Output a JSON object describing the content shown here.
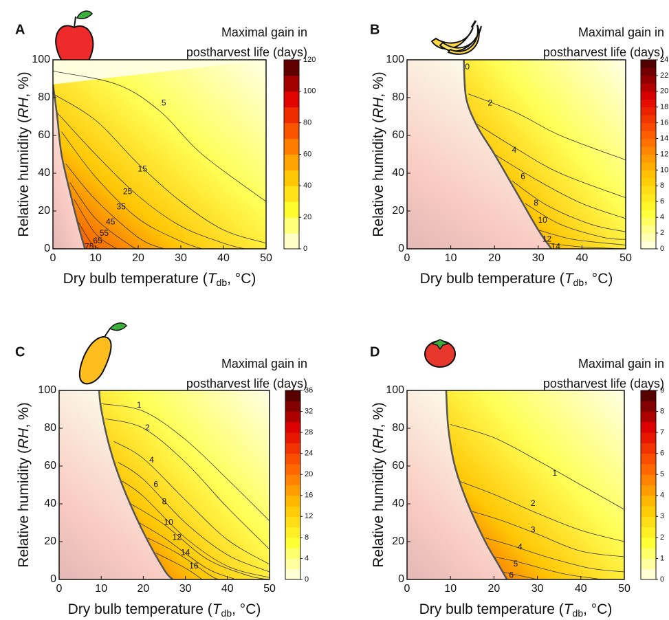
{
  "chart_data": [
    {
      "type": "contour",
      "panel": "A",
      "title_lines": [
        "Maximal gain in",
        "postharvest life (days)"
      ],
      "xlabel": [
        "Dry bulb temperature (",
        "T",
        "db",
        ", °C)"
      ],
      "ylabel": [
        "Relative humidity (",
        "RH",
        ", %)"
      ],
      "xlim": [
        0,
        50
      ],
      "ylim": [
        0,
        100
      ],
      "xticks": [
        0,
        10,
        20,
        30,
        40,
        50
      ],
      "yticks": [
        0,
        20,
        40,
        60,
        80,
        100
      ],
      "colormap": [
        "#fffff0",
        "#ffff30",
        "#ffc000",
        "#ff6000",
        "#e00000",
        "#400000"
      ],
      "colorbar": {
        "lim": [
          0,
          120
        ],
        "ticks": [
          0,
          20,
          40,
          60,
          80,
          100,
          120
        ]
      },
      "boundary": {
        "x": [
          0,
          1,
          2,
          4,
          6,
          7.5
        ],
        "y": [
          87,
          70,
          50,
          30,
          12,
          0
        ]
      },
      "contours": [
        {
          "level": 5,
          "label_at": [
            26,
            77
          ],
          "x": [
            0,
            15,
            25,
            35,
            50
          ],
          "y": [
            94,
            87,
            73,
            50,
            25
          ]
        },
        {
          "level": 15,
          "label_at": [
            21,
            42
          ],
          "x": [
            0,
            10,
            20,
            30,
            40,
            50
          ],
          "y": [
            82,
            68,
            45,
            25,
            10,
            3
          ]
        },
        {
          "level": 25,
          "label_at": [
            17.5,
            30
          ],
          "x": [
            1,
            10,
            20,
            30,
            40,
            45
          ],
          "y": [
            72,
            50,
            28,
            12,
            3,
            0
          ]
        },
        {
          "level": 35,
          "label_at": [
            16,
            22
          ],
          "x": [
            2,
            10,
            20,
            30,
            35
          ],
          "y": [
            62,
            38,
            16,
            4,
            0
          ]
        },
        {
          "level": 45,
          "label_at": [
            13.5,
            14
          ],
          "x": [
            3,
            10,
            20,
            26
          ],
          "y": [
            45,
            26,
            6,
            0
          ]
        },
        {
          "level": 55,
          "label_at": [
            12,
            8
          ],
          "x": [
            4,
            10,
            18,
            20
          ],
          "y": [
            35,
            16,
            2,
            0
          ]
        },
        {
          "level": 65,
          "label_at": [
            10.5,
            4
          ],
          "x": [
            5,
            10,
            15
          ],
          "y": [
            26,
            8,
            0
          ]
        },
        {
          "level": 75,
          "label_at": [
            8.5,
            1
          ],
          "x": [
            6,
            9,
            11
          ],
          "y": [
            14,
            3,
            0
          ]
        }
      ]
    },
    {
      "type": "contour",
      "panel": "B",
      "title_lines": [
        "Maximal gain in",
        "postharvest life (days)"
      ],
      "xlabel": [
        "Dry bulb temperature (",
        "T",
        "db",
        ", °C)"
      ],
      "ylabel": [
        "Relative humidity (",
        "RH",
        ", %)"
      ],
      "xlim": [
        0,
        50
      ],
      "ylim": [
        0,
        100
      ],
      "xticks": [
        0,
        10,
        20,
        30,
        40,
        50
      ],
      "yticks": [
        0,
        20,
        40,
        60,
        80,
        100
      ],
      "colormap": [
        "#fffff0",
        "#ffff30",
        "#ffc000",
        "#ff6000",
        "#e00000",
        "#400000"
      ],
      "colorbar": {
        "lim": [
          0,
          24
        ],
        "ticks": [
          0,
          2,
          4,
          6,
          8,
          10,
          12,
          14,
          16,
          18,
          20,
          22,
          24
        ]
      },
      "boundary": {
        "x": [
          13,
          13.5,
          16,
          20,
          25,
          30,
          33
        ],
        "y": [
          100,
          80,
          65,
          50,
          30,
          10,
          0
        ]
      },
      "contours": [
        {
          "level": 0,
          "label_at": [
            13.8,
            96
          ],
          "x": [
            13,
            13.5
          ],
          "y": [
            100,
            80
          ]
        },
        {
          "level": 2,
          "label_at": [
            19,
            77
          ],
          "x": [
            14,
            25,
            35,
            50
          ],
          "y": [
            82,
            72,
            60,
            47
          ]
        },
        {
          "level": 4,
          "label_at": [
            24.5,
            52
          ],
          "x": [
            16,
            25,
            35,
            50
          ],
          "y": [
            66,
            53,
            40,
            27
          ]
        },
        {
          "level": 6,
          "label_at": [
            26.5,
            38
          ],
          "x": [
            20,
            30,
            40,
            50
          ],
          "y": [
            50,
            36,
            24,
            16
          ]
        },
        {
          "level": 8,
          "label_at": [
            29.5,
            24
          ],
          "x": [
            24,
            32,
            42,
            50
          ],
          "y": [
            36,
            23,
            13,
            9
          ]
        },
        {
          "level": 10,
          "label_at": [
            31,
            15
          ],
          "x": [
            27,
            35,
            45,
            50
          ],
          "y": [
            24,
            13,
            6,
            5
          ]
        },
        {
          "level": 12,
          "label_at": [
            32,
            5
          ],
          "x": [
            30,
            38,
            50
          ],
          "y": [
            10,
            5,
            2
          ]
        },
        {
          "level": 14,
          "label_at": [
            34,
            1
          ],
          "x": [
            32,
            40,
            50
          ],
          "y": [
            3,
            1,
            0
          ]
        }
      ]
    },
    {
      "type": "contour",
      "panel": "C",
      "title_lines": [
        "Maximal gain in",
        "postharvest life (days)"
      ],
      "xlabel": [
        "Dry bulb temperature (",
        "T",
        "db",
        ", °C)"
      ],
      "ylabel": [
        "Relative humidity (",
        "RH",
        ", %)"
      ],
      "xlim": [
        0,
        50
      ],
      "ylim": [
        0,
        100
      ],
      "xticks": [
        0,
        10,
        20,
        30,
        40,
        50
      ],
      "yticks": [
        0,
        20,
        40,
        60,
        80,
        100
      ],
      "colormap": [
        "#fffff0",
        "#ffff30",
        "#ffc000",
        "#ff6000",
        "#e00000",
        "#400000"
      ],
      "colorbar": {
        "lim": [
          0,
          36
        ],
        "ticks": [
          0,
          4,
          8,
          12,
          16,
          20,
          24,
          28,
          32,
          36
        ]
      },
      "boundary": {
        "x": [
          9.5,
          10,
          12,
          15,
          20,
          25,
          27
        ],
        "y": [
          100,
          90,
          70,
          50,
          25,
          5,
          0
        ]
      },
      "contours": [
        {
          "level": 1,
          "label_at": [
            19,
            92
          ],
          "x": [
            10,
            20,
            30,
            40,
            50
          ],
          "y": [
            93,
            89,
            74,
            53,
            31
          ]
        },
        {
          "level": 2,
          "label_at": [
            21,
            80
          ],
          "x": [
            11,
            20,
            30,
            40,
            50
          ],
          "y": [
            85,
            80,
            62,
            38,
            16
          ]
        },
        {
          "level": 4,
          "label_at": [
            22,
            63
          ],
          "x": [
            13,
            20,
            30,
            40,
            50
          ],
          "y": [
            73,
            64,
            42,
            21,
            8
          ]
        },
        {
          "level": 6,
          "label_at": [
            23,
            50
          ],
          "x": [
            14,
            20,
            30,
            40,
            50
          ],
          "y": [
            62,
            53,
            30,
            13,
            4
          ]
        },
        {
          "level": 8,
          "label_at": [
            25,
            41
          ],
          "x": [
            15,
            20,
            30,
            40,
            50
          ],
          "y": [
            52,
            44,
            22,
            7,
            1
          ]
        },
        {
          "level": 10,
          "label_at": [
            26,
            30
          ],
          "x": [
            17,
            25,
            35,
            45,
            50
          ],
          "y": [
            40,
            29,
            11,
            2,
            0
          ]
        },
        {
          "level": 12,
          "label_at": [
            28,
            22
          ],
          "x": [
            19,
            25,
            35,
            42
          ],
          "y": [
            30,
            22,
            6,
            0
          ]
        },
        {
          "level": 14,
          "label_at": [
            30,
            14
          ],
          "x": [
            21,
            28,
            36,
            38
          ],
          "y": [
            22,
            14,
            2,
            0
          ]
        },
        {
          "level": 16,
          "label_at": [
            32,
            7
          ],
          "x": [
            23,
            30,
            34
          ],
          "y": [
            14,
            6,
            0
          ]
        }
      ]
    },
    {
      "type": "contour",
      "panel": "D",
      "title_lines": [
        "Maximal gain in",
        "postharvest life (days)"
      ],
      "xlabel": [
        "Dry bulb temperature (",
        "T",
        "db",
        ", °C)"
      ],
      "ylabel": [
        "Relative humidity (",
        "RH",
        ", %)"
      ],
      "xlim": [
        0,
        50
      ],
      "ylim": [
        0,
        100
      ],
      "xticks": [
        0,
        10,
        20,
        30,
        40,
        50
      ],
      "yticks": [
        0,
        20,
        40,
        60,
        80,
        100
      ],
      "colormap": [
        "#fffff0",
        "#ffff30",
        "#ffc000",
        "#ff6000",
        "#e00000",
        "#400000"
      ],
      "colorbar": {
        "lim": [
          0,
          9
        ],
        "ticks": [
          0,
          1,
          2,
          3,
          4,
          5,
          6,
          7,
          8,
          9
        ]
      },
      "boundary": {
        "x": [
          9,
          9.5,
          11,
          14,
          18,
          21,
          23
        ],
        "y": [
          100,
          80,
          60,
          40,
          20,
          8,
          0
        ]
      },
      "contours": [
        {
          "level": 1,
          "label_at": [
            34,
            56
          ],
          "x": [
            10,
            20,
            30,
            40,
            50
          ],
          "y": [
            82,
            75,
            63,
            50,
            37
          ]
        },
        {
          "level": 2,
          "label_at": [
            29,
            40
          ],
          "x": [
            12,
            20,
            30,
            40,
            50
          ],
          "y": [
            52,
            45,
            35,
            26,
            20
          ]
        },
        {
          "level": 3,
          "label_at": [
            29,
            26
          ],
          "x": [
            15,
            22,
            30,
            40,
            50
          ],
          "y": [
            36,
            31,
            24,
            15,
            12
          ]
        },
        {
          "level": 4,
          "label_at": [
            26,
            17
          ],
          "x": [
            18,
            24,
            32,
            42,
            50
          ],
          "y": [
            22,
            18,
            12,
            6,
            4
          ]
        },
        {
          "level": 5,
          "label_at": [
            25,
            8
          ],
          "x": [
            20,
            26,
            36,
            45
          ],
          "y": [
            12,
            9,
            3,
            0
          ]
        },
        {
          "level": 6,
          "label_at": [
            24,
            2
          ],
          "x": [
            22,
            26,
            30
          ],
          "y": [
            4,
            2,
            0
          ]
        }
      ]
    }
  ]
}
